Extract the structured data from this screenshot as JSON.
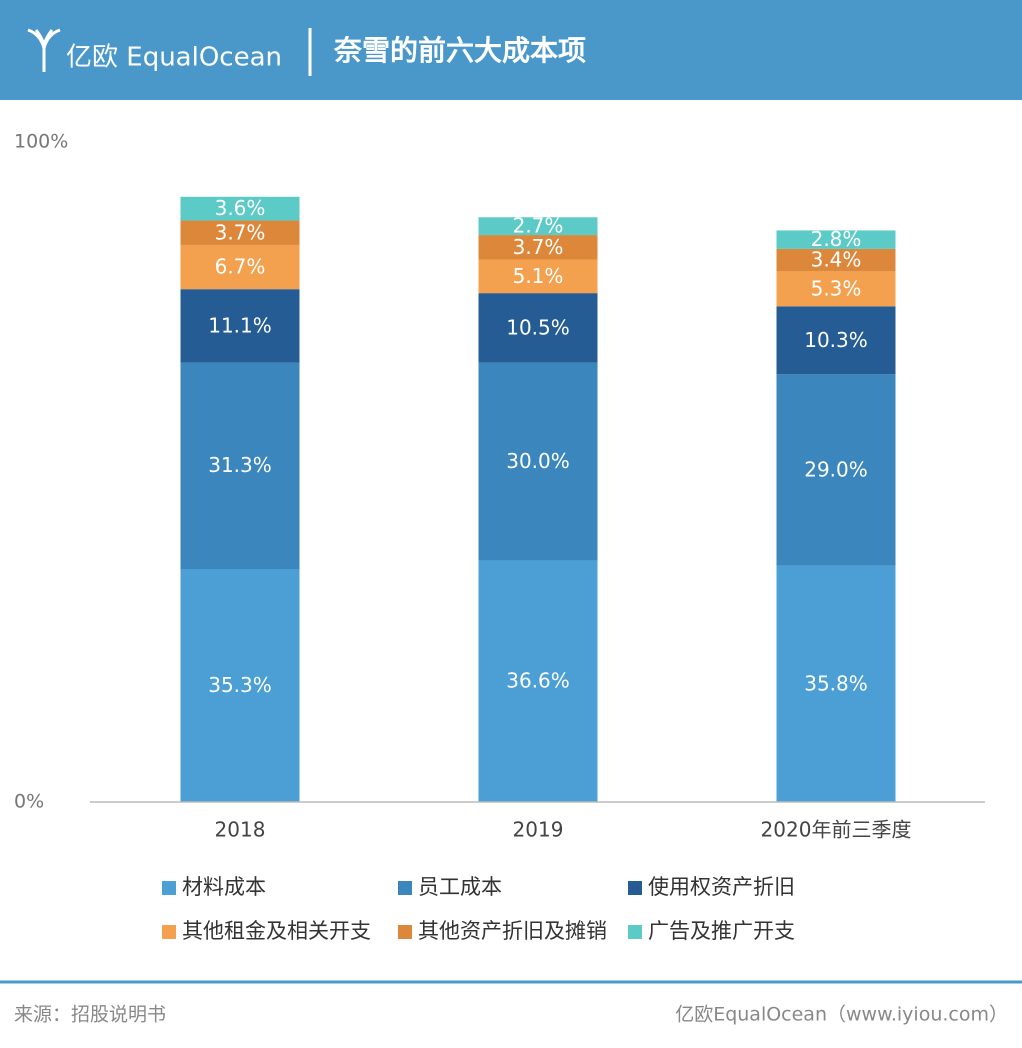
{
  "brand": "亿欧 EqualOcean",
  "source": "来源：招股说明书",
  "footer_brand": "亿欧EqualOcean（www.iyiou.com）",
  "chart_data": {
    "type": "stacked_bar",
    "title": "奈雪的前六大成本项",
    "categories": [
      "2018",
      "2019",
      "2020年前三季度"
    ],
    "series": [
      {
        "name": "材料成本",
        "color": "#4b9fd5",
        "values": [
          35.3,
          36.6,
          35.8
        ],
        "value_labels": [
          "35.3%",
          "36.6%",
          "35.8%"
        ]
      },
      {
        "name": "员工成本",
        "color": "#3a86bd",
        "values": [
          31.3,
          30.0,
          29.0
        ],
        "value_labels": [
          "31.3%",
          "30.0%",
          "29.0%"
        ]
      },
      {
        "name": "使用权资产折旧",
        "color": "#245c93",
        "values": [
          11.1,
          10.5,
          10.3
        ],
        "value_labels": [
          "11.1%",
          "10.5%",
          "10.3%"
        ]
      },
      {
        "name": "其他租金及相关开支",
        "color": "#f4a14f",
        "values": [
          6.7,
          5.1,
          5.3
        ],
        "value_labels": [
          "6.7%",
          "5.1%",
          "5.3%"
        ]
      },
      {
        "name": "其他资产折旧及摊销",
        "color": "#dd873b",
        "values": [
          3.7,
          3.7,
          3.4
        ],
        "value_labels": [
          "3.7%",
          "3.7%",
          "3.4%"
        ]
      },
      {
        "name": "广告及推广开支",
        "color": "#5ccbc8",
        "values": [
          3.6,
          2.7,
          2.8
        ],
        "value_labels": [
          "3.6%",
          "2.7%",
          "2.8%"
        ]
      }
    ],
    "ylim": [
      0,
      100
    ],
    "yticks": [
      {
        "value": 0,
        "label": "0%"
      },
      {
        "value": 100,
        "label": "100%"
      }
    ],
    "grid": false
  }
}
